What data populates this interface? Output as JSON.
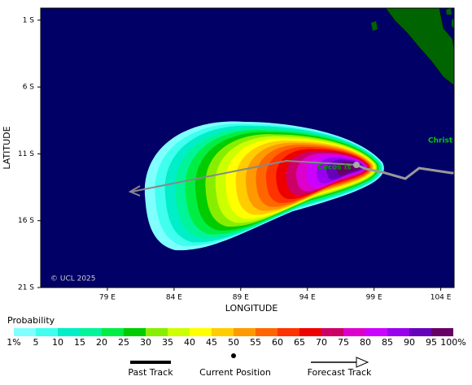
{
  "map": {
    "xlabel": "LONGITUDE",
    "ylabel": "LATITUDE",
    "copyright": "© UCL 2025",
    "places": [
      "Christ",
      "Cocos Is"
    ],
    "xlim": [
      74,
      105
    ],
    "ylim": [
      -21,
      -0.1
    ],
    "lat_ticks": [
      {
        "value": -1,
        "label": "1 S"
      },
      {
        "value": -6,
        "label": "6 S"
      },
      {
        "value": -11,
        "label": "11 S"
      },
      {
        "value": -16,
        "label": "16 S"
      },
      {
        "value": -21,
        "label": "21 S"
      }
    ],
    "lon_ticks": [
      {
        "value": 79,
        "label": "79 E"
      },
      {
        "value": 84,
        "label": "84 E"
      },
      {
        "value": 89,
        "label": "89 E"
      },
      {
        "value": 94,
        "label": "94 E"
      },
      {
        "value": 99,
        "label": "99 E"
      },
      {
        "value": 104,
        "label": "104 E"
      }
    ]
  },
  "colorbar": {
    "title": "Probability",
    "labels": [
      "1%",
      "5",
      "10",
      "15",
      "20",
      "25",
      "30",
      "35",
      "40",
      "45",
      "50",
      "55",
      "60",
      "65",
      "70",
      "75",
      "80",
      "85",
      "90",
      "95",
      "100%"
    ],
    "colors": [
      "#80ffff",
      "#40ffee",
      "#00eec8",
      "#00f59a",
      "#00ee44",
      "#00cc00",
      "#88ee00",
      "#ccff00",
      "#ffff00",
      "#ffcc00",
      "#ff9900",
      "#ff6600",
      "#ff3300",
      "#ee0000",
      "#cc0066",
      "#dd00cc",
      "#cc00ff",
      "#9900ee",
      "#6600bb",
      "#660066"
    ]
  },
  "legend": [
    "Past Track",
    "Current Position",
    "Forecast Track"
  ]
}
